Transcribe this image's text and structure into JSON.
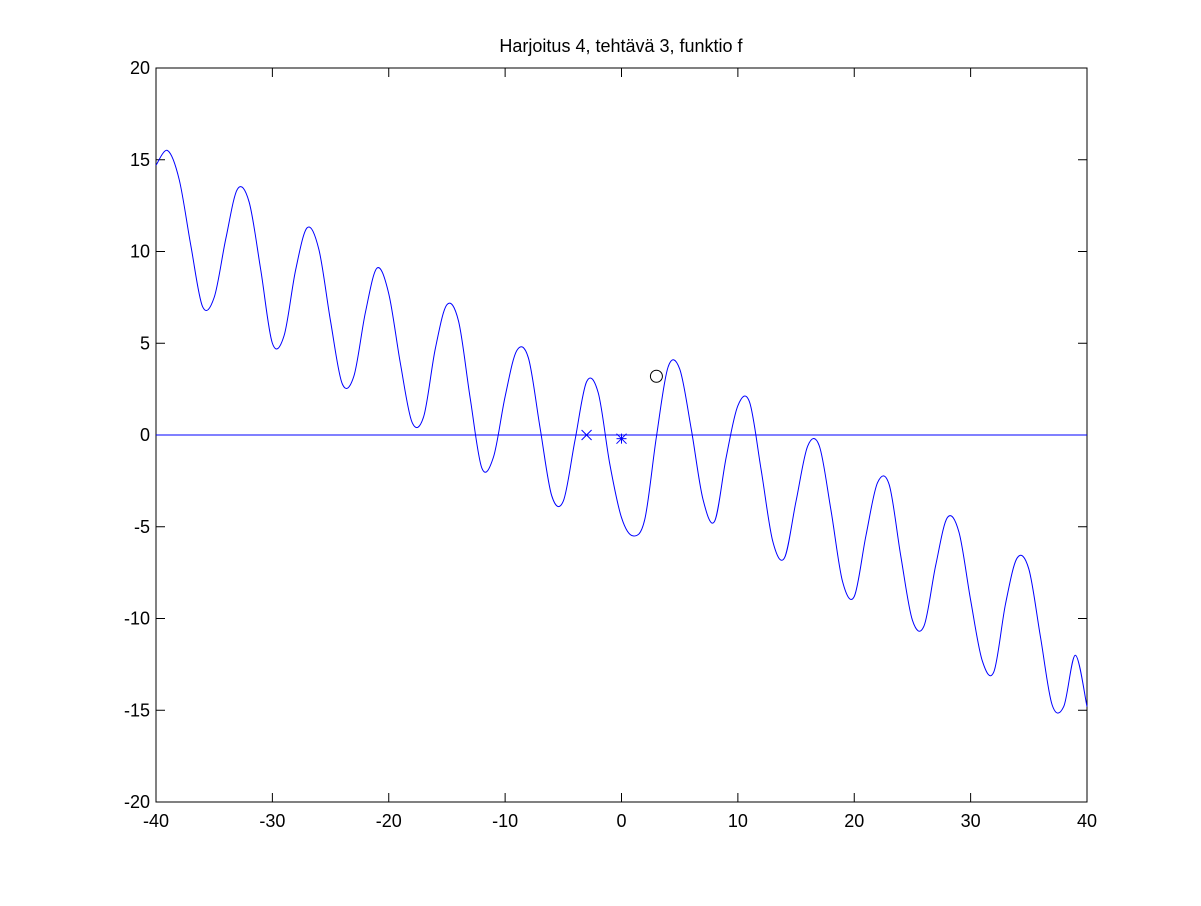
{
  "chart_data": {
    "type": "line",
    "title": "Harjoitus 4, tehtävä 3, funktio f",
    "xlabel": "",
    "ylabel": "",
    "xlim": [
      -40,
      40
    ],
    "ylim": [
      -20,
      20
    ],
    "xticks": [
      -40,
      -30,
      -20,
      -10,
      0,
      10,
      20,
      30,
      40
    ],
    "yticks": [
      -20,
      -15,
      -10,
      -5,
      0,
      5,
      10,
      15,
      20
    ],
    "grid": false,
    "legend": "none",
    "series": [
      {
        "color": "#0000ff",
        "kind": "line",
        "x": [
          -40.0,
          -39.0,
          -38.0,
          -37.0,
          -36.0,
          -35.0,
          -34.0,
          -33.0,
          -32.0,
          -31.0,
          -30.0,
          -29.0,
          -28.0,
          -27.0,
          -26.0,
          -25.0,
          -24.0,
          -23.0,
          -22.0,
          -21.0,
          -20.0,
          -19.0,
          -18.0,
          -17.0,
          -16.0,
          -15.0,
          -14.0,
          -13.0,
          -12.0,
          -11.0,
          -10.0,
          -9.0,
          -8.0,
          -7.0,
          -6.0,
          -5.0,
          -4.0,
          -3.0,
          -2.0,
          -1.0,
          0.0,
          1.0,
          2.0,
          3.0,
          4.0,
          5.0,
          6.0,
          7.0,
          8.0,
          9.0,
          10.0,
          11.0,
          12.0,
          13.0,
          14.0,
          15.0,
          16.0,
          17.0,
          18.0,
          19.0,
          20.0,
          21.0,
          22.0,
          23.0,
          24.0,
          25.0,
          26.0,
          27.0,
          28.0,
          29.0,
          30.0,
          31.0,
          32.0,
          33.0,
          34.0,
          35.0,
          36.0,
          37.0,
          38.0,
          39.0,
          40.0
        ],
        "y": [
          14.7,
          15.5,
          13.9,
          10.3,
          7.0,
          7.5,
          10.7,
          13.4,
          12.7,
          9.0,
          5.0,
          5.4,
          9.0,
          11.3,
          10.1,
          6.2,
          2.8,
          3.2,
          6.7,
          9.1,
          7.7,
          3.9,
          0.7,
          1.0,
          4.7,
          7.1,
          6.2,
          2.0,
          -1.8,
          -1.2,
          2.1,
          4.6,
          4.2,
          0.4,
          -3.3,
          -3.6,
          -0.3,
          2.9,
          2.3,
          -1.6,
          -4.5,
          -5.5,
          -4.6,
          -0.1,
          3.7,
          3.6,
          0.3,
          -3.5,
          -4.7,
          -1.2,
          1.6,
          1.8,
          -1.9,
          -5.8,
          -6.7,
          -3.6,
          -0.6,
          -0.6,
          -4.1,
          -8.0,
          -8.8,
          -5.5,
          -2.6,
          -2.7,
          -6.6,
          -10.1,
          -10.4,
          -7.1,
          -4.5,
          -5.3,
          -9.0,
          -12.3,
          -12.9,
          -9.2,
          -6.7,
          -7.3,
          -11.0,
          -14.7,
          -14.8,
          -12.0,
          -14.8
        ]
      },
      {
        "color": "#0000ff",
        "kind": "line",
        "x": [
          -40,
          40
        ],
        "y": [
          0,
          0
        ]
      }
    ],
    "markers": [
      {
        "symbol": "x",
        "x": -3.0,
        "y": 0.0,
        "color": "#0000ff"
      },
      {
        "symbol": "*",
        "x": 0.0,
        "y": -0.2,
        "color": "#0000ff"
      },
      {
        "symbol": "o",
        "x": 3.0,
        "y": 3.2,
        "color": "#000000"
      }
    ]
  }
}
